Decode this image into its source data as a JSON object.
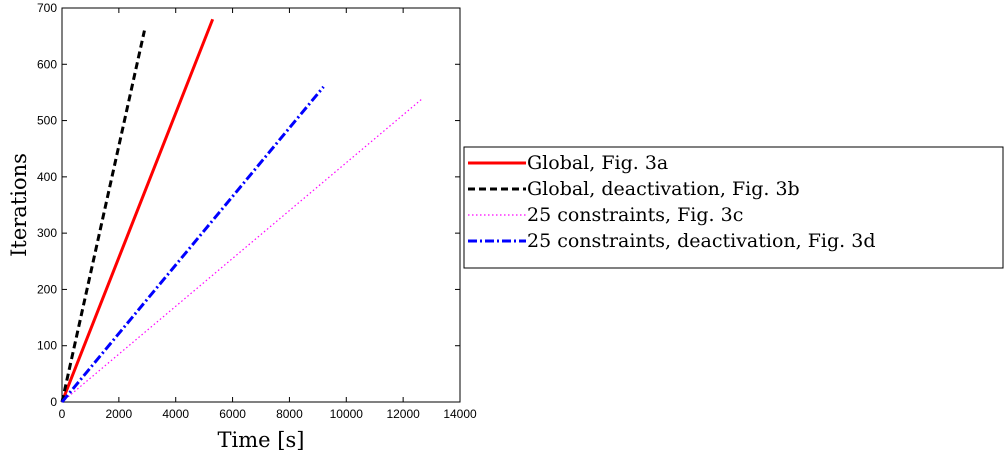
{
  "chart_data": {
    "type": "line",
    "title": "",
    "xlabel": "Time [s]",
    "ylabel": "Iterations",
    "xlim": [
      0,
      14000
    ],
    "ylim": [
      0,
      700
    ],
    "xticks": [
      0,
      2000,
      4000,
      6000,
      8000,
      10000,
      12000,
      14000
    ],
    "yticks": [
      0,
      100,
      200,
      300,
      400,
      500,
      600,
      700
    ],
    "grid": false,
    "legend_position": "outside-right",
    "series": [
      {
        "name": "Global, Fig. 3a",
        "color": "#ff0000",
        "style": "solid",
        "x": [
          0,
          5300
        ],
        "y": [
          0,
          680
        ]
      },
      {
        "name": "Global, deactivation, Fig. 3b",
        "color": "#000000",
        "style": "dashed",
        "x": [
          0,
          2900
        ],
        "y": [
          0,
          660
        ]
      },
      {
        "name": "25 constraints, Fig. 3c",
        "color": "#ff00ff",
        "style": "dotted",
        "x": [
          0,
          12700
        ],
        "y": [
          0,
          540
        ]
      },
      {
        "name": "25 constraints, deactivation, Fig. 3d",
        "color": "#0000ff",
        "style": "dashdot",
        "x": [
          0,
          9200
        ],
        "y": [
          0,
          560
        ]
      }
    ]
  }
}
